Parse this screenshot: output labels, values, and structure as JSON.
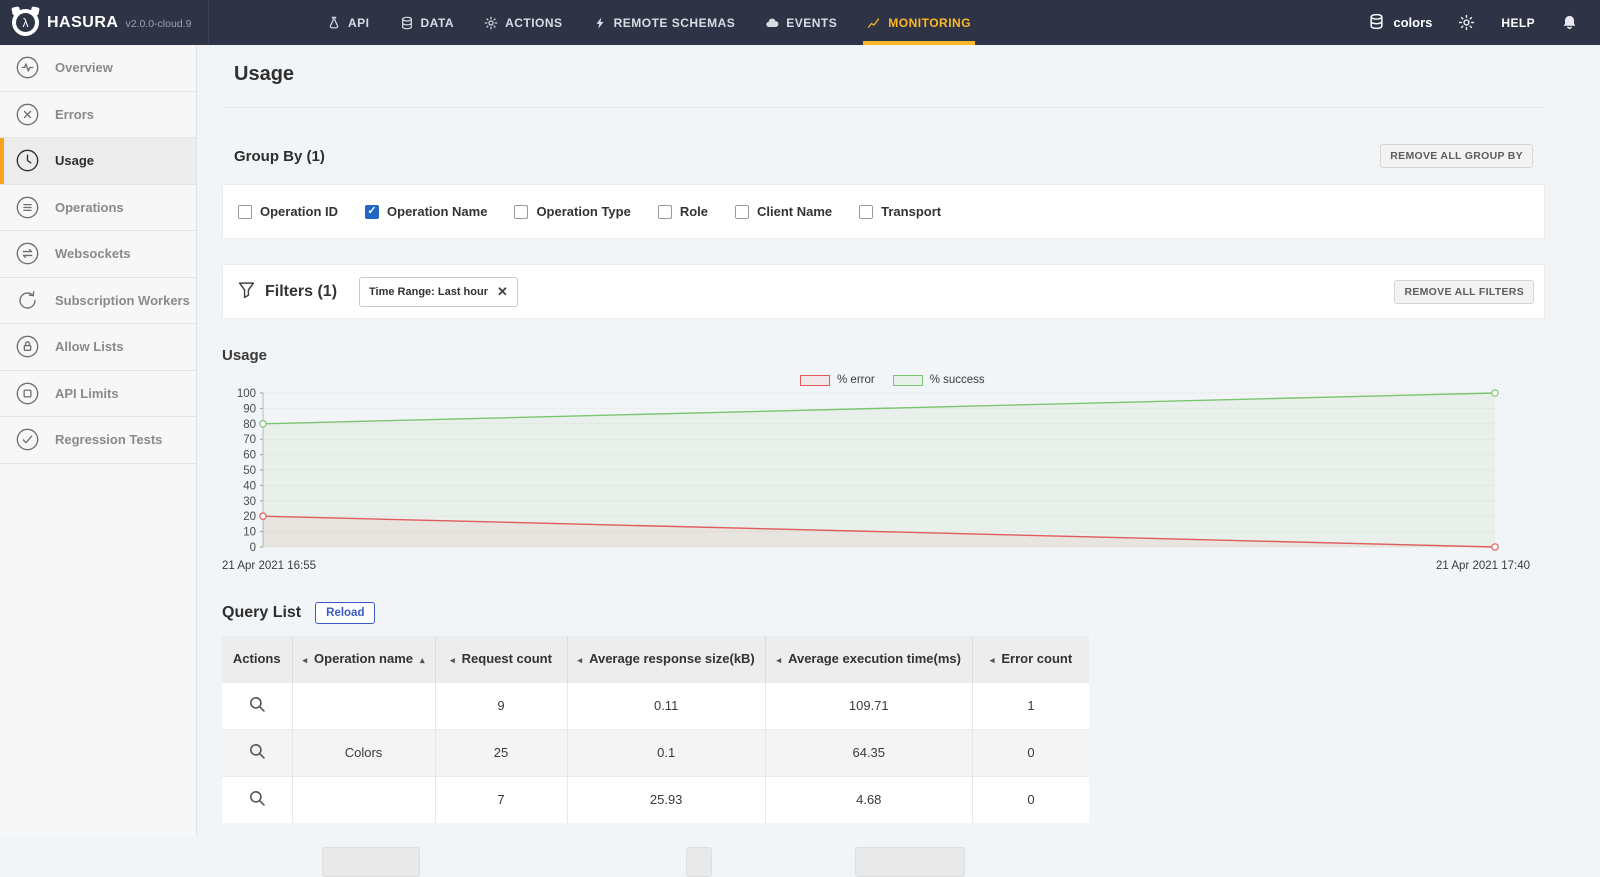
{
  "topbar": {
    "brand": "HASURA",
    "version": "v2.0.0-cloud.9",
    "nav": [
      {
        "label": "API",
        "icon": "flask-icon",
        "active": false
      },
      {
        "label": "DATA",
        "icon": "database-icon",
        "active": false
      },
      {
        "label": "ACTIONS",
        "icon": "gears-icon",
        "active": false
      },
      {
        "label": "REMOTE SCHEMAS",
        "icon": "bolt-icon",
        "active": false
      },
      {
        "label": "EVENTS",
        "icon": "cloud-icon",
        "active": false
      },
      {
        "label": "MONITORING",
        "icon": "chart-icon",
        "active": true
      }
    ],
    "project": "colors",
    "help": "HELP",
    "accent_color": "#fdb72a"
  },
  "sidebar": {
    "items": [
      {
        "label": "Overview",
        "icon": "pulse-icon",
        "active": false
      },
      {
        "label": "Errors",
        "icon": "circle-x-icon",
        "active": false
      },
      {
        "label": "Usage",
        "icon": "clock-icon",
        "active": true
      },
      {
        "label": "Operations",
        "icon": "list-icon",
        "active": false
      },
      {
        "label": "Websockets",
        "icon": "arrows-icon",
        "active": false
      },
      {
        "label": "Subscription Workers",
        "icon": "loop-icon",
        "active": false
      },
      {
        "label": "Allow Lists",
        "icon": "lock-icon",
        "active": false
      },
      {
        "label": "API Limits",
        "icon": "square-icon",
        "active": false
      },
      {
        "label": "Regression Tests",
        "icon": "check-icon",
        "active": false
      }
    ],
    "active_bar_color": "#fca21c"
  },
  "page": {
    "title": "Usage"
  },
  "group_by": {
    "title": "Group By (1)",
    "remove_all_label": "REMOVE ALL GROUP BY",
    "options": [
      {
        "label": "Operation ID",
        "checked": false
      },
      {
        "label": "Operation Name",
        "checked": true
      },
      {
        "label": "Operation Type",
        "checked": false
      },
      {
        "label": "Role",
        "checked": false
      },
      {
        "label": "Client Name",
        "checked": false
      },
      {
        "label": "Transport",
        "checked": false
      }
    ],
    "checkbox_color": "#2367c4"
  },
  "filters": {
    "title": "Filters (1)",
    "chip_label": "Time Range: Last hour",
    "remove_all_label": "REMOVE ALL FILTERS"
  },
  "chart_section": {
    "title": "Usage"
  },
  "chart_data": {
    "type": "line",
    "x_labels": [
      "21 Apr 2021 16:55",
      "21 Apr 2021 17:40"
    ],
    "series": [
      {
        "name": "% error",
        "color": "#e05c5c",
        "values": [
          20,
          0
        ]
      },
      {
        "name": "% success",
        "color": "#7cc46e",
        "values": [
          80,
          100
        ]
      }
    ],
    "ylim": [
      0,
      100
    ],
    "ytick_step": 10,
    "grid": true,
    "legend_position": "top-right"
  },
  "query_list": {
    "title": "Query List",
    "reload_label": "Reload",
    "table": {
      "columns": [
        "Actions",
        "Operation name",
        "Request count",
        "Average response size(kB)",
        "Average execution time(ms)",
        "Error count"
      ],
      "sorted_column": "Operation name",
      "sort_direction": "asc",
      "rows": [
        {
          "operation_name": "",
          "request_count": "9",
          "avg_response_kb": "0.11",
          "avg_exec_ms": "109.71",
          "error_count": "1"
        },
        {
          "operation_name": "Colors",
          "request_count": "25",
          "avg_response_kb": "0.1",
          "avg_exec_ms": "64.35",
          "error_count": "0"
        },
        {
          "operation_name": "",
          "request_count": "7",
          "avg_response_kb": "25.93",
          "avg_exec_ms": "4.68",
          "error_count": "0"
        }
      ]
    }
  }
}
